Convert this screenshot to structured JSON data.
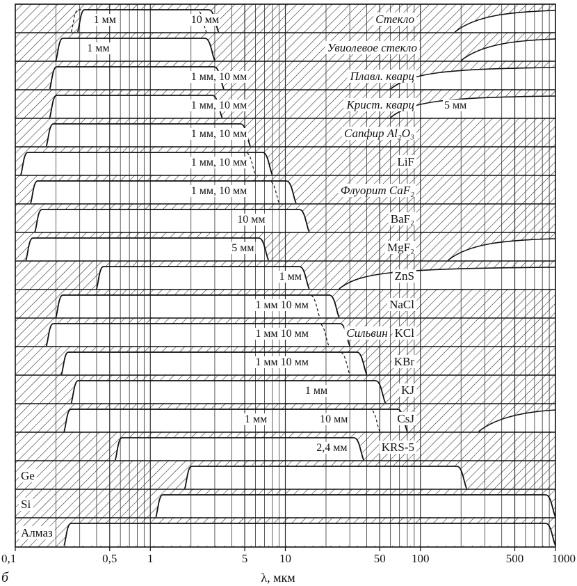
{
  "figure": {
    "panel_label": "б"
  },
  "axis": {
    "xlabel": "λ, мкм",
    "ticks": [
      {
        "value": 0.1,
        "label": "0,1"
      },
      {
        "value": 0.5,
        "label": "0,5"
      },
      {
        "value": 1,
        "label": "1"
      },
      {
        "value": 5,
        "label": "5"
      },
      {
        "value": 10,
        "label": "10"
      },
      {
        "value": 50,
        "label": "50"
      },
      {
        "value": 100,
        "label": "100"
      },
      {
        "value": 500,
        "label": "500"
      },
      {
        "value": 1000,
        "label": "1000"
      }
    ]
  },
  "materials": [
    {
      "key": "glass",
      "name": "Стекло",
      "italic": true,
      "thickness": [
        {
          "text": "1 мм",
          "at": 0.38
        },
        {
          "text": "10 мм",
          "at": 2.0
        }
      ],
      "bands": [
        [
          0.26,
          2.6,
          "d"
        ],
        [
          0.29,
          3.2,
          "s"
        ]
      ],
      "far_ir_from": 180
    },
    {
      "key": "uviol",
      "name": "Увиолевое стекло",
      "italic": true,
      "thickness": [
        {
          "text": "1 мм",
          "at": 0.34
        }
      ],
      "bands": [
        [
          0.2,
          3.0,
          "s"
        ]
      ],
      "far_ir_from": 200
    },
    {
      "key": "fused_quartz",
      "name": "Плавл. кварц",
      "italic": true,
      "thickness": [
        {
          "text": "1 мм, 10 мм",
          "at": 2.0
        }
      ],
      "bands": [
        [
          0.18,
          3.5,
          "s"
        ]
      ],
      "far_ir_from": 60
    },
    {
      "key": "crystal_quartz",
      "name": "Крист. кварц",
      "italic": true,
      "thickness": [
        {
          "text": "1 мм, 10 мм",
          "at": 2.0
        },
        {
          "text": "5 мм",
          "at": 150
        }
      ],
      "bands": [
        [
          0.18,
          3.4,
          "s"
        ]
      ],
      "far_ir_from": 60
    },
    {
      "key": "sapphire",
      "name": "Сапфир",
      "formula": "Al₂O₃",
      "italic": true,
      "thickness": [
        {
          "text": "1 мм, 10 мм",
          "at": 2.0
        }
      ],
      "bands": [
        [
          0.17,
          5.5,
          "s"
        ]
      ],
      "far_ir_from": null
    },
    {
      "key": "lif",
      "name": "LiF",
      "italic": false,
      "thickness": [
        {
          "text": "1 мм, 10 мм",
          "at": 2.0
        }
      ],
      "bands": [
        [
          0.11,
          6.0,
          "d"
        ],
        [
          0.11,
          8.0,
          "s"
        ]
      ],
      "far_ir_from": null
    },
    {
      "key": "caf2",
      "name": "Флуорит",
      "formula": "CaF₂",
      "italic": true,
      "thickness": [
        {
          "text": "1 мм, 10 мм",
          "at": 2.0
        }
      ],
      "bands": [
        [
          0.13,
          9.0,
          "d"
        ],
        [
          0.13,
          12.0,
          "s"
        ]
      ],
      "far_ir_from": null
    },
    {
      "key": "baf2",
      "name": "BaF₂",
      "italic": false,
      "thickness": [
        {
          "text": "10 мм",
          "at": 4.4
        }
      ],
      "bands": [
        [
          0.14,
          15.0,
          "s"
        ]
      ],
      "far_ir_from": null
    },
    {
      "key": "mgf2",
      "name": "MgF₂",
      "italic": false,
      "thickness": [
        {
          "text": "5 мм",
          "at": 4.0
        }
      ],
      "bands": [
        [
          0.12,
          7.5,
          "s"
        ]
      ],
      "far_ir_from": 160
    },
    {
      "key": "zns",
      "name": "ZnS",
      "italic": false,
      "thickness": [
        {
          "text": "1 мм",
          "at": 9.0
        }
      ],
      "bands": [
        [
          0.4,
          15.0,
          "s"
        ]
      ],
      "far_ir_from": 25
    },
    {
      "key": "nacl",
      "name": "NaCl",
      "italic": false,
      "thickness": [
        {
          "text": "1 мм 10 мм",
          "at": 6.0
        }
      ],
      "bands": [
        [
          0.2,
          18.0,
          "d"
        ],
        [
          0.2,
          25.0,
          "s"
        ]
      ],
      "far_ir_from": null
    },
    {
      "key": "kcl",
      "name": "KCl",
      "italic": false,
      "subtitle": "Сильвин",
      "thickness": [
        {
          "text": "1 мм 10 мм",
          "at": 6.0
        }
      ],
      "bands": [
        [
          0.17,
          21.0,
          "d"
        ],
        [
          0.17,
          30.0,
          "s"
        ]
      ],
      "far_ir_from": null
    },
    {
      "key": "kbr",
      "name": "KBr",
      "italic": false,
      "thickness": [
        {
          "text": "1 мм 10 мм",
          "at": 6.0
        }
      ],
      "bands": [
        [
          0.22,
          30.0,
          "d"
        ],
        [
          0.22,
          40.0,
          "s"
        ]
      ],
      "far_ir_from": null
    },
    {
      "key": "kj",
      "name": "KJ",
      "italic": false,
      "thickness": [
        {
          "text": "1 мм",
          "at": 14.0
        }
      ],
      "bands": [
        [
          0.26,
          55.0,
          "s"
        ]
      ],
      "far_ir_from": null
    },
    {
      "key": "csj",
      "name": "CsJ",
      "italic": false,
      "thickness": [
        {
          "text": "1 мм",
          "at": 5.0
        },
        {
          "text": "10 мм",
          "at": 18.0
        }
      ],
      "bands": [
        [
          0.23,
          50.0,
          "d"
        ],
        [
          0.23,
          80.0,
          "s"
        ]
      ],
      "far_ir_from": 270
    },
    {
      "key": "krs5",
      "name": "KRS-5",
      "italic": false,
      "thickness": [
        {
          "text": "2,4 мм",
          "at": 17.0
        }
      ],
      "bands": [
        [
          0.55,
          38.0,
          "s"
        ]
      ],
      "far_ir_from": null
    },
    {
      "key": "ge",
      "name": "Ge",
      "italic": false,
      "thickness": [],
      "bands": [
        [
          1.8,
          220.0,
          "s"
        ]
      ],
      "far_ir_from": null
    },
    {
      "key": "si",
      "name": "Si",
      "italic": false,
      "thickness": [],
      "bands": [
        [
          1.1,
          1000.0,
          "s"
        ]
      ],
      "far_ir_from": null
    },
    {
      "key": "diamond",
      "name": "Алмаз",
      "italic": false,
      "thickness": [],
      "bands": [
        [
          0.23,
          1000.0,
          "s"
        ]
      ],
      "far_ir_from": null
    }
  ]
}
